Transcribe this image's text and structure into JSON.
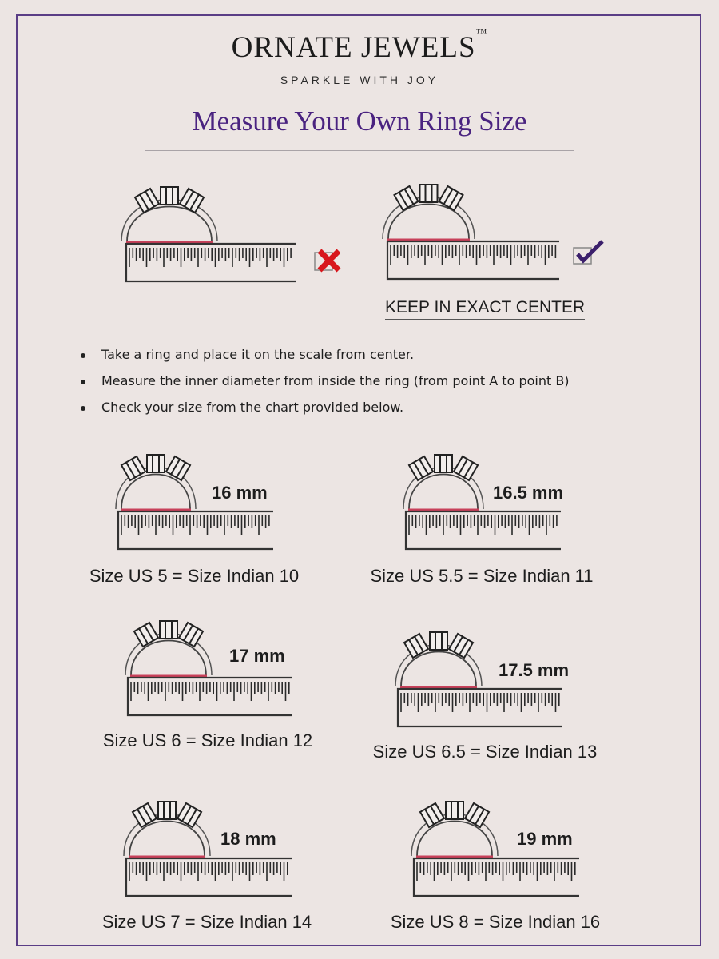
{
  "brand": {
    "name": "ORNATE JEWELS",
    "trademark": "™",
    "tagline": "SPARKLE WITH JOY"
  },
  "title": "Measure Your Own Ring Size",
  "examples": {
    "wrong_icon": "red-x-icon",
    "right_icon": "purple-check-icon",
    "note": "KEEP IN EXACT CENTER"
  },
  "instructions": [
    "Take a ring and place it on the scale from center.",
    "Measure the inner diameter from inside the ring (from point A to point B)",
    "Check your size from the chart provided below."
  ],
  "colors": {
    "accent": "#4a2380",
    "measure_line": "#c8405a",
    "wrong": "#d8161c",
    "right": "#3b1f6b"
  },
  "sizes": [
    {
      "mm": "16 mm",
      "label": "Size US 5 = Size Indian 10"
    },
    {
      "mm": "16.5 mm",
      "label": "Size US 5.5 = Size Indian 11"
    },
    {
      "mm": "17 mm",
      "label": "Size US 6 = Size Indian 12"
    },
    {
      "mm": "17.5 mm",
      "label": "Size US 6.5 = Size Indian 13"
    },
    {
      "mm": "18 mm",
      "label": "Size US 7 = Size Indian 14"
    },
    {
      "mm": "19 mm",
      "label": "Size US 8 = Size Indian 16"
    }
  ]
}
